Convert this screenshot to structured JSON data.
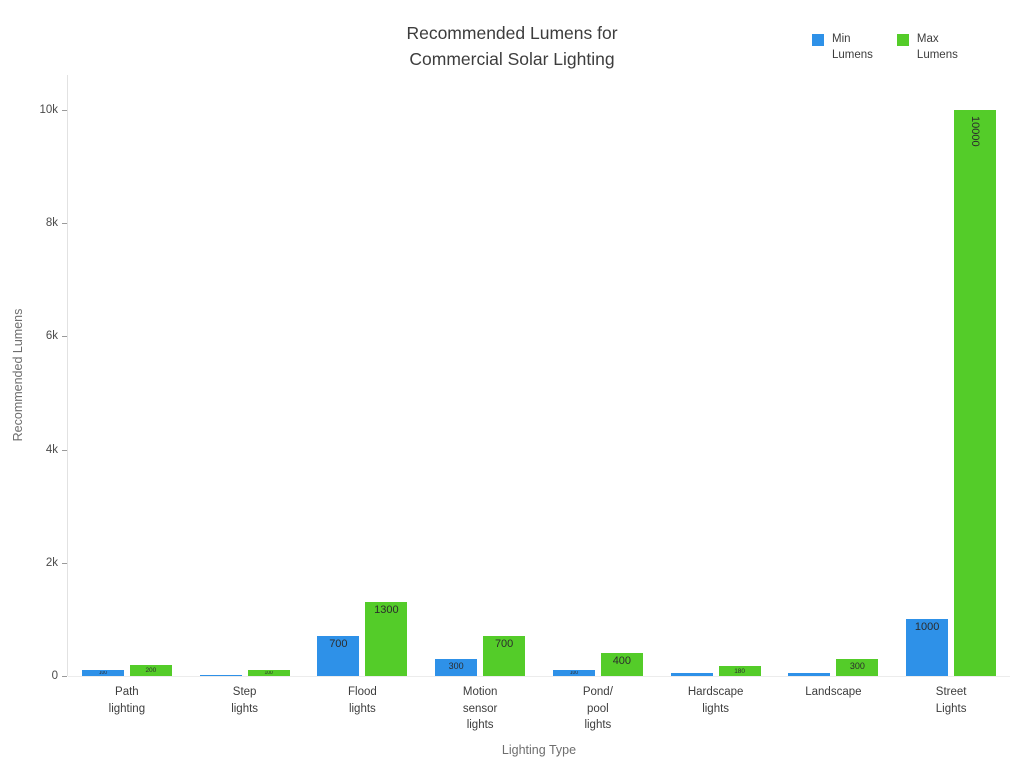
{
  "title": "Recommended Lumens for\nCommercial Solar Lighting",
  "legend": {
    "items": [
      {
        "label": "Min\nLumens",
        "color": "#2E91E8"
      },
      {
        "label": "Max\nLumens",
        "color": "#54CC29"
      }
    ]
  },
  "chart_data": {
    "type": "bar",
    "title": "Recommended Lumens for Commercial Solar Lighting",
    "xlabel": "Lighting Type",
    "ylabel": "Recommended Lumens",
    "ylim": [
      0,
      10000
    ],
    "grid": false,
    "legend_position": "top-right",
    "yticks": [
      {
        "value": 0,
        "label": "0"
      },
      {
        "value": 2000,
        "label": "2k"
      },
      {
        "value": 4000,
        "label": "4k"
      },
      {
        "value": 6000,
        "label": "6k"
      },
      {
        "value": 8000,
        "label": "8k"
      },
      {
        "value": 10000,
        "label": "10k"
      }
    ],
    "categories": [
      "Path\nlighting",
      "Step\nlights",
      "Flood\nlights",
      "Motion\nsensor\nlights",
      "Pond/\npool\nlights",
      "Hardscape\nlights",
      "Landscape",
      "Street\nLights"
    ],
    "series": [
      {
        "name": "Min Lumens",
        "color": "#2E91E8",
        "values": [
          100,
          20,
          700,
          300,
          100,
          50,
          50,
          1000
        ]
      },
      {
        "name": "Max Lumens",
        "color": "#54CC29",
        "values": [
          200,
          100,
          1300,
          700,
          400,
          180,
          300,
          10000
        ]
      }
    ]
  }
}
